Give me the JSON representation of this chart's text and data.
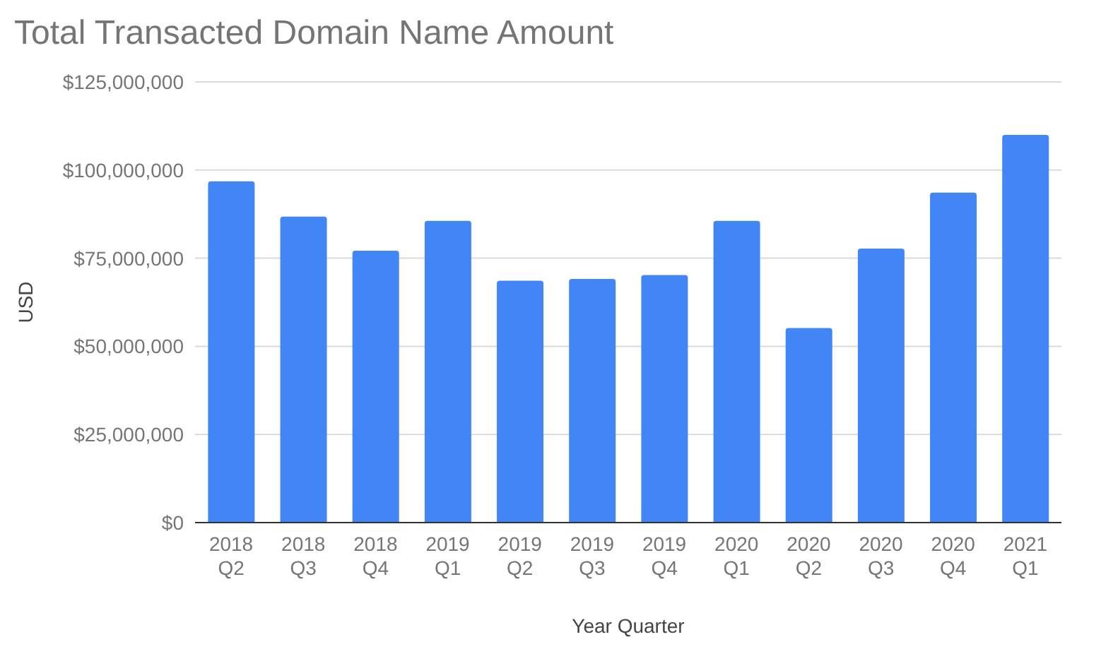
{
  "chart_data": {
    "type": "bar",
    "title": "Total Transacted Domain Name Amount",
    "xlabel": "Year Quarter",
    "ylabel": "USD",
    "categories": [
      "2018 Q2",
      "2018 Q3",
      "2018 Q4",
      "2019 Q1",
      "2019 Q2",
      "2019 Q3",
      "2019 Q4",
      "2020 Q1",
      "2020 Q2",
      "2020 Q3",
      "2020 Q4",
      "2021 Q1"
    ],
    "values": [
      96800000,
      86800000,
      77100000,
      85600000,
      68600000,
      69100000,
      70200000,
      85600000,
      55200000,
      77700000,
      93600000,
      110000000
    ],
    "color": "#4285f4",
    "ylim": [
      0,
      125000000
    ],
    "yticks": [
      {
        "value": 0,
        "label": "$0"
      },
      {
        "value": 25000000,
        "label": "$25,000,000"
      },
      {
        "value": 50000000,
        "label": "$50,000,000"
      },
      {
        "value": 75000000,
        "label": "$75,000,000"
      },
      {
        "value": 100000000,
        "label": "$100,000,000"
      },
      {
        "value": 125000000,
        "label": "$125,000,000"
      }
    ],
    "grid": "y"
  }
}
